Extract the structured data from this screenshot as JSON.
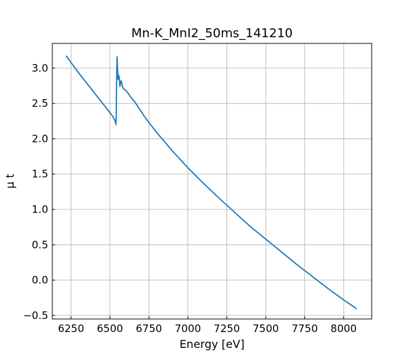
{
  "chart_data": {
    "type": "line",
    "title": "Mn-K_MnI2_50ms_141210",
    "xlabel": "Energy [eV]",
    "ylabel": "μ t",
    "xlim": [
      6130,
      8180
    ],
    "ylim": [
      -0.55,
      3.35
    ],
    "grid": true,
    "xticks": [
      6250,
      6500,
      6750,
      7000,
      7250,
      7500,
      7750,
      8000
    ],
    "yticks": [
      -0.5,
      0.0,
      0.5,
      1.0,
      1.5,
      2.0,
      2.5,
      3.0
    ],
    "xtick_labels": [
      "6250",
      "6500",
      "6750",
      "7000",
      "7250",
      "7500",
      "7750",
      "8000"
    ],
    "ytick_labels": [
      "−0.5",
      "0.0",
      "0.5",
      "1.0",
      "1.5",
      "2.0",
      "2.5",
      "3.0"
    ],
    "series": [
      {
        "color": "#1f77b4",
        "x": [
          6220,
          6260,
          6300,
          6350,
          6400,
          6450,
          6500,
          6520,
          6530,
          6536,
          6538,
          6539,
          6540,
          6542,
          6544,
          6546,
          6548,
          6552,
          6556,
          6560,
          6564,
          6568,
          6572,
          6576,
          6580,
          6586,
          6592,
          6600,
          6615,
          6630,
          6645,
          6660,
          6675,
          6690,
          6705,
          6720,
          6750,
          6800,
          6850,
          6900,
          6950,
          7000,
          7100,
          7200,
          7300,
          7400,
          7500,
          7600,
          7700,
          7800,
          7900,
          8000,
          8080
        ],
        "y": [
          3.17,
          3.05,
          2.93,
          2.79,
          2.65,
          2.51,
          2.37,
          2.31,
          2.27,
          2.23,
          2.22,
          2.2,
          2.3,
          2.65,
          3.02,
          3.16,
          3.02,
          2.84,
          2.9,
          2.86,
          2.74,
          2.8,
          2.82,
          2.79,
          2.74,
          2.71,
          2.7,
          2.69,
          2.65,
          2.6,
          2.56,
          2.52,
          2.47,
          2.42,
          2.37,
          2.32,
          2.23,
          2.09,
          1.96,
          1.83,
          1.71,
          1.59,
          1.37,
          1.16,
          0.96,
          0.76,
          0.58,
          0.4,
          0.22,
          0.05,
          -0.12,
          -0.28,
          -0.4
        ]
      }
    ]
  }
}
